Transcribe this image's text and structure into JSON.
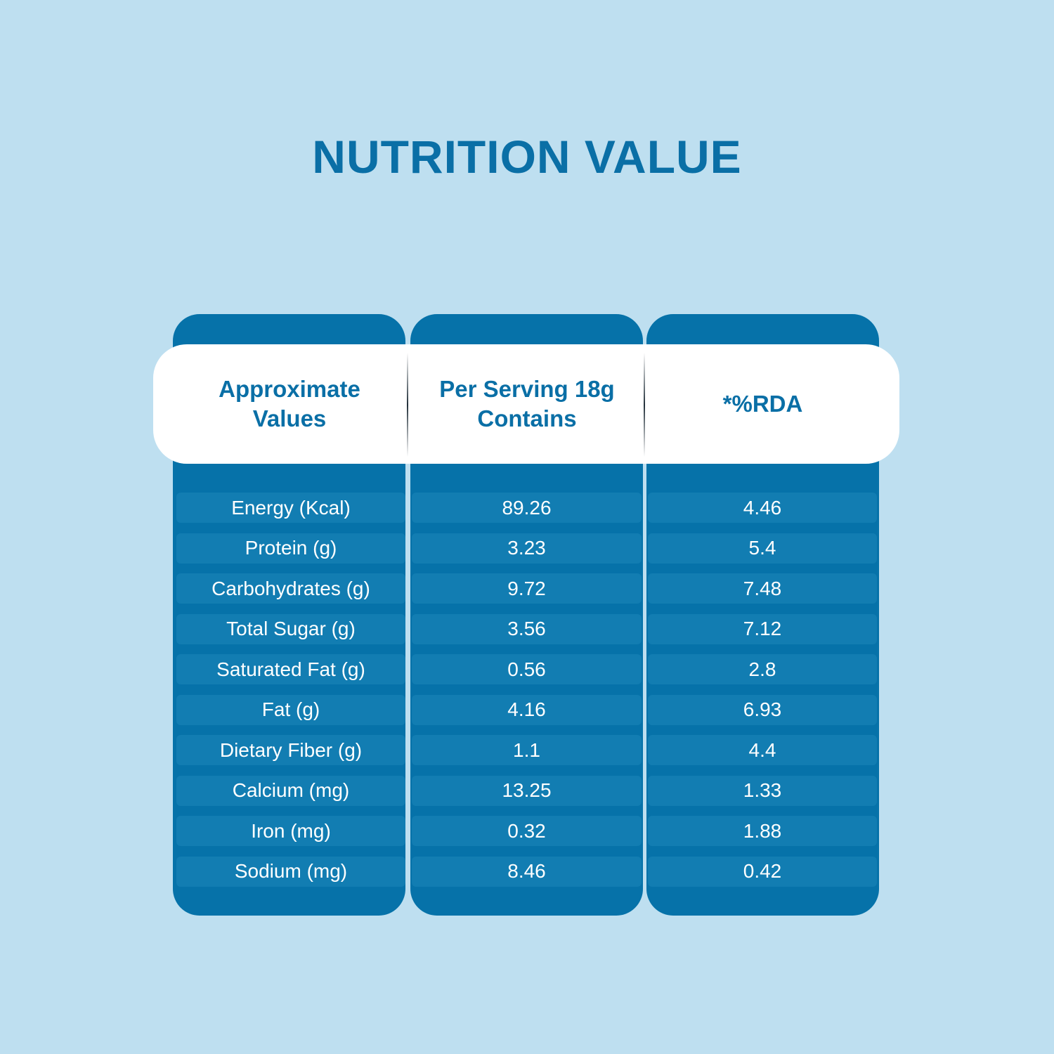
{
  "title": "NUTRITION VALUE",
  "headers": [
    "Approximate Values",
    "Per Serving 18g Contains",
    "*%RDA"
  ],
  "rows": [
    {
      "name": "Energy (Kcal)",
      "per_serving": "89.26",
      "rda": "4.46"
    },
    {
      "name": "Protein (g)",
      "per_serving": "3.23",
      "rda": "5.4"
    },
    {
      "name": "Carbohydrates (g)",
      "per_serving": "9.72",
      "rda": "7.48"
    },
    {
      "name": "Total Sugar (g)",
      "per_serving": "3.56",
      "rda": "7.12"
    },
    {
      "name": "Saturated Fat (g)",
      "per_serving": "0.56",
      "rda": "2.8"
    },
    {
      "name": "Fat (g)",
      "per_serving": "4.16",
      "rda": "6.93"
    },
    {
      "name": "Dietary Fiber (g)",
      "per_serving": "1.1",
      "rda": "4.4"
    },
    {
      "name": "Calcium (mg)",
      "per_serving": "13.25",
      "rda": "1.33"
    },
    {
      "name": "Iron (mg)",
      "per_serving": "0.32",
      "rda": "1.88"
    },
    {
      "name": "Sodium (mg)",
      "per_serving": "8.46",
      "rda": "0.42"
    }
  ],
  "colors": {
    "background": "#bedff0",
    "column": "#0672a9",
    "row": "#127db2",
    "title": "#0a6fa6"
  }
}
